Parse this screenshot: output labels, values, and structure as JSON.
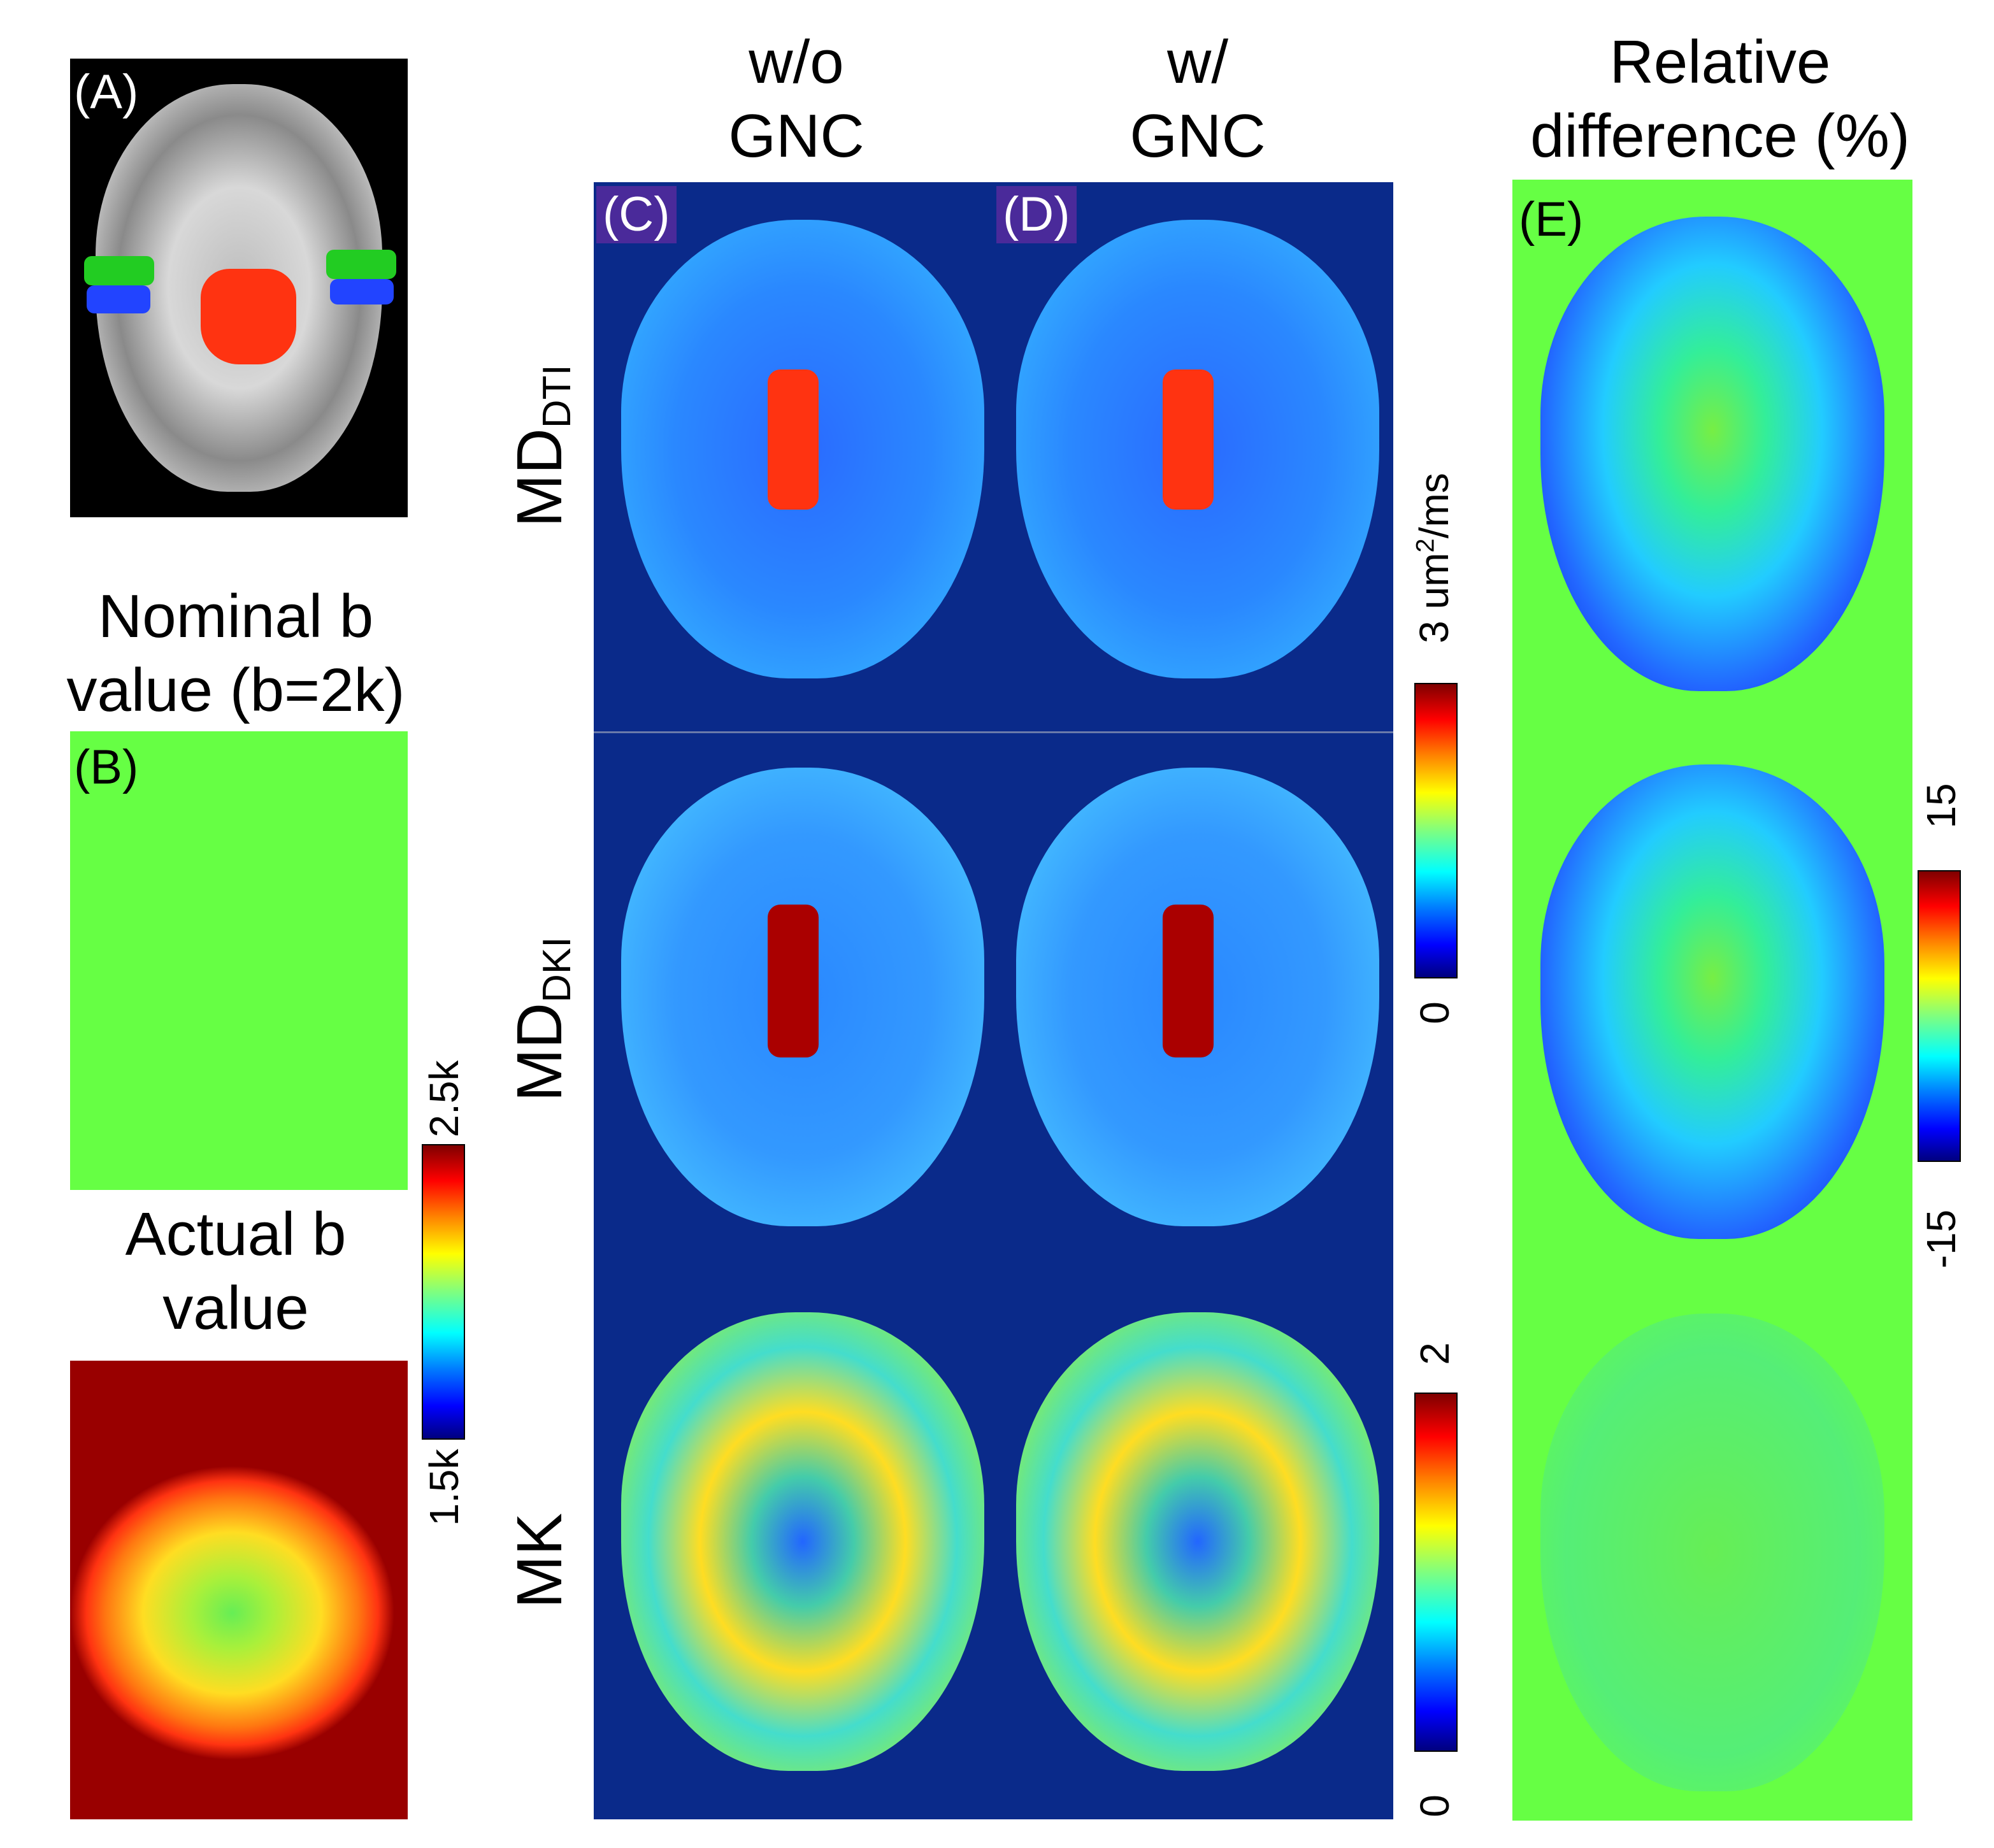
{
  "columns": {
    "without_gnc": "w/o\nGNC",
    "with_gnc": "w/\nGNC",
    "relative_difference": "Relative\ndifference (%)"
  },
  "left_titles": {
    "nominal": "Nominal b\nvalue (b=2k)",
    "actual": "Actual b\nvalue"
  },
  "panel_labels": {
    "a": "(A)",
    "b": "(B)",
    "c": "(C)",
    "d": "(D)",
    "e": "(E)"
  },
  "row_labels": {
    "md_dti_main": "MD",
    "md_dti_sub": "DTI",
    "md_dki_main": "MD",
    "md_dki_sub": "DKI",
    "mk": "MK"
  },
  "colorbars": {
    "bvalue": {
      "max": "2.5k",
      "min": "1.5k"
    },
    "md": {
      "max": "3 um",
      "max_sup": "2",
      "max_unit": "/ms",
      "min": "0"
    },
    "mk": {
      "max": "2",
      "min": "0"
    },
    "diff": {
      "max": "15",
      "min": "-15"
    }
  },
  "colors": {
    "map_background": "#0a2a8a",
    "diff_background": "#66ff44",
    "panel_label_bg": "#4a2a9a"
  }
}
